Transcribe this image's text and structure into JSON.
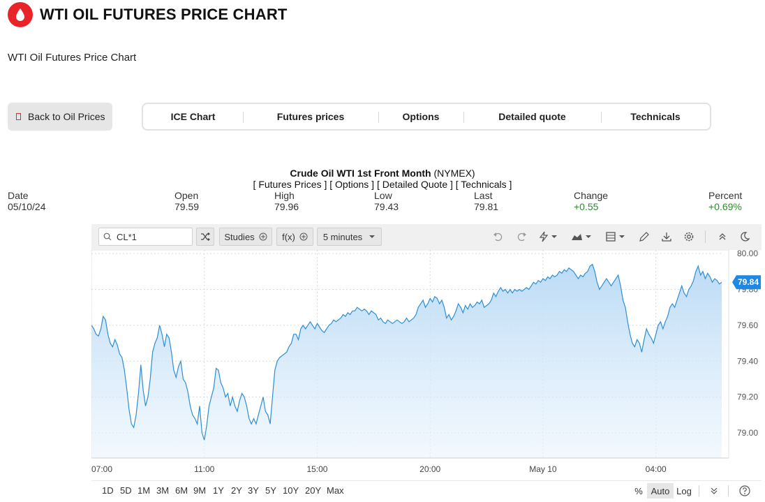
{
  "header": {
    "title": "WTI OIL FUTURES PRICE CHART",
    "subtitle": "WTI Oil Futures Price Chart"
  },
  "nav": {
    "back_label": "Back to Oil Prices",
    "tabs": [
      {
        "label": "ICE Chart"
      },
      {
        "label": "Futures prices"
      },
      {
        "label": "Options"
      },
      {
        "label": "Detailed quote"
      },
      {
        "label": "Technicals"
      }
    ]
  },
  "quote": {
    "name": "Crude Oil WTI 1st Front Month",
    "exchange": "(NYMEX)",
    "links": "[ Futures Prices ] [ Options ] [ Detailed Quote ] [ Technicals ]",
    "stats": [
      {
        "label": "Date",
        "value": "05/10/24"
      },
      {
        "label": "Open",
        "value": "79.59"
      },
      {
        "label": "High",
        "value": "79.96"
      },
      {
        "label": "Low",
        "value": "79.43"
      },
      {
        "label": "Last",
        "value": "79.81"
      },
      {
        "label": "Change",
        "value": "+0.55"
      },
      {
        "label": "Percent",
        "value": "+0.69%"
      }
    ]
  },
  "toolbar": {
    "symbol": "CL*1",
    "studies_label": "Studies",
    "fx_label": "f(x)",
    "interval_label": "5 minutes",
    "icons": [
      "undo-icon",
      "redo-icon",
      "lightning-icon",
      "chart-type-icon",
      "layout-icon",
      "pencil-icon",
      "download-icon",
      "gear-icon",
      "collapse-icon",
      "moon-icon"
    ]
  },
  "ranges": [
    "1D",
    "5D",
    "1M",
    "3M",
    "6M",
    "9M",
    "1Y",
    "2Y",
    "3Y",
    "5Y",
    "10Y",
    "20Y",
    "Max"
  ],
  "scale_options": {
    "percent": "%",
    "auto": "Auto",
    "log": "Log"
  },
  "colors": {
    "brand_red": "#e8232a",
    "line_blue": "#2d8fd6",
    "positive_green": "#2e8b2e",
    "badge_blue": "#1e88e5"
  },
  "chart_data": {
    "type": "area",
    "symbol": "CL*1",
    "last_price_label": "79.84",
    "ylim": [
      78.86,
      80.02
    ],
    "y_ticks": [
      "80.00",
      "79.80",
      "79.60",
      "79.40",
      "79.20",
      "79.00"
    ],
    "y_tick_values": [
      80.0,
      79.8,
      79.6,
      79.4,
      79.2,
      79.0
    ],
    "x_ticks": [
      "07:00",
      "11:00",
      "15:00",
      "20:00",
      "May 10",
      "04:00"
    ],
    "x_tick_index": [
      0,
      48,
      96,
      144,
      192,
      240
    ],
    "grid": true,
    "series": [
      {
        "values": [
          79.6,
          79.58,
          79.55,
          79.54,
          79.58,
          79.65,
          79.63,
          79.55,
          79.5,
          79.48,
          79.52,
          79.49,
          79.44,
          79.42,
          79.35,
          79.25,
          79.13,
          79.05,
          79.03,
          79.1,
          79.22,
          79.38,
          79.24,
          79.15,
          79.2,
          79.3,
          79.45,
          79.5,
          79.53,
          79.6,
          79.55,
          79.48,
          79.55,
          79.53,
          79.45,
          79.35,
          79.31,
          79.37,
          79.4,
          79.3,
          79.28,
          79.23,
          79.15,
          79.1,
          79.08,
          79.05,
          79.15,
          79.0,
          78.96,
          79.04,
          79.15,
          79.2,
          79.25,
          79.36,
          79.35,
          79.28,
          79.25,
          79.2,
          79.22,
          79.15,
          79.2,
          79.15,
          79.12,
          79.18,
          79.22,
          79.2,
          79.15,
          79.08,
          79.05,
          79.08,
          79.05,
          79.1,
          79.15,
          79.2,
          79.12,
          79.1,
          79.05,
          79.2,
          79.35,
          79.4,
          79.42,
          79.43,
          79.44,
          79.45,
          79.48,
          79.5,
          79.55,
          79.55,
          79.52,
          79.58,
          79.6,
          79.58,
          79.6,
          79.62,
          79.6,
          79.58,
          79.61,
          79.59,
          79.57,
          79.56,
          79.58,
          79.6,
          79.61,
          79.63,
          79.62,
          79.63,
          79.64,
          79.66,
          79.65,
          79.67,
          79.66,
          79.68,
          79.68,
          79.7,
          79.69,
          79.68,
          79.69,
          79.68,
          79.66,
          79.68,
          79.67,
          79.66,
          79.63,
          79.64,
          79.62,
          79.61,
          79.63,
          79.62,
          79.61,
          79.62,
          79.63,
          79.62,
          79.61,
          79.62,
          79.64,
          79.62,
          79.63,
          79.64,
          79.66,
          79.7,
          79.72,
          79.74,
          79.7,
          79.72,
          79.75,
          79.73,
          79.76,
          79.75,
          79.72,
          79.74,
          79.7,
          79.64,
          79.66,
          79.63,
          79.65,
          79.68,
          79.72,
          79.7,
          79.67,
          79.71,
          79.69,
          79.72,
          79.7,
          79.71,
          79.73,
          79.72,
          79.74,
          79.7,
          79.71,
          79.72,
          79.74,
          79.78,
          79.76,
          79.79,
          79.81,
          79.79,
          79.8,
          79.78,
          79.8,
          79.78,
          79.8,
          79.79,
          79.8,
          79.79,
          79.8,
          79.81,
          79.8,
          79.82,
          79.84,
          79.83,
          79.85,
          79.84,
          79.86,
          79.85,
          79.87,
          79.86,
          79.88,
          79.87,
          79.88,
          79.9,
          79.89,
          79.91,
          79.9,
          79.92,
          79.91,
          79.9,
          79.88,
          79.86,
          79.88,
          79.87,
          79.89,
          79.9,
          79.93,
          79.94,
          79.9,
          79.84,
          79.8,
          79.82,
          79.84,
          79.86,
          79.84,
          79.82,
          79.84,
          79.86,
          79.88,
          79.82,
          79.74,
          79.7,
          79.62,
          79.55,
          79.5,
          79.48,
          79.52,
          79.5,
          79.45,
          79.52,
          79.58,
          79.55,
          79.53,
          79.5,
          79.55,
          79.6,
          79.62,
          79.58,
          79.62,
          79.65,
          79.7,
          79.72,
          79.7,
          79.74,
          79.78,
          79.82,
          79.78,
          79.76,
          79.8,
          79.82,
          79.85,
          79.9,
          79.93,
          79.88,
          79.9,
          79.86,
          79.89,
          79.87,
          79.84,
          79.86,
          79.85,
          79.83,
          79.84
        ]
      }
    ]
  }
}
